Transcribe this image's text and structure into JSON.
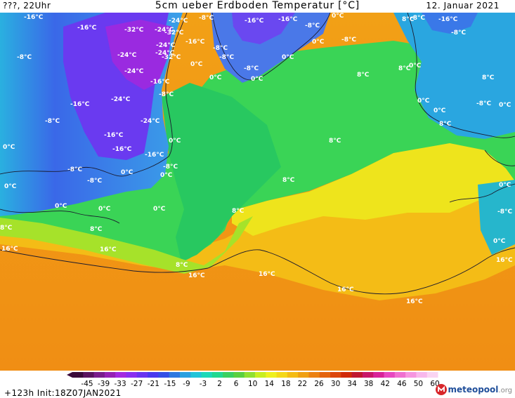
{
  "header": {
    "left": "???, 22Uhr",
    "title": "5cm ueber Erdboden Temperatur [°C]",
    "date": "12. Januar 2021"
  },
  "colorbar": {
    "ticks": [
      "-45",
      "-39",
      "-33",
      "-27",
      "-21",
      "-15",
      "-9",
      "-3",
      "2",
      "6",
      "10",
      "14",
      "18",
      "22",
      "26",
      "30",
      "34",
      "38",
      "42",
      "46",
      "50",
      "60"
    ],
    "colors": [
      "#3a0a3a",
      "#5a1460",
      "#7a1e8c",
      "#9622b4",
      "#a42ae0",
      "#8a2ff0",
      "#6a34f0",
      "#4a3aee",
      "#3450e6",
      "#2e78e0",
      "#2aa0e0",
      "#22c4d8",
      "#1ed8b8",
      "#22d890",
      "#3ad060",
      "#5ad040",
      "#90e030",
      "#c8ee20",
      "#eef01e",
      "#f4d818",
      "#f4bc14",
      "#f0a012",
      "#ec8212",
      "#e4640e",
      "#dc460c",
      "#d02a0a",
      "#c01830",
      "#c81868",
      "#d82498",
      "#e848c0",
      "#f070d0",
      "#f696e0",
      "#f8b8ec",
      "#fad4f2"
    ]
  },
  "map_labels": [
    "-16°C",
    "-16°C",
    "-32°C",
    "-24°C",
    "-24°C",
    "-32°C",
    "-24°C",
    "-8°C",
    "-16°C",
    "-16°C",
    "-8°C",
    "0°C",
    "-16°C",
    "-8°C",
    "-8°C",
    "0°C",
    "-8°C",
    "-8°C",
    "-24°C",
    "-24°C",
    "-32°C",
    "-8°C",
    "8°C",
    "-16°C",
    "-8°C",
    "-24°C",
    "0°C",
    "-8°C",
    "0°C",
    "8°C",
    "8°C",
    "0°C",
    "-16°C",
    "-24°C",
    "-16°C",
    "-8°C",
    "0°C",
    "0°C",
    "0°C",
    "-8°C",
    "-8°C",
    "-24°C",
    "8°C",
    "8°C",
    "0°C",
    "-16°C",
    "-16°C",
    "-16°C",
    "0°C",
    "8°C",
    "0°C",
    "-8°C",
    "0°C",
    "-8°C",
    "0°C",
    "0°C",
    "8°C",
    "0°C",
    "-8°C",
    "0°C",
    "8°C",
    "0°C",
    "0°C",
    "0°C",
    "-8°C",
    "8°C",
    "8°C",
    "16°C",
    "16°C",
    "0°C",
    "8°C",
    "16°C",
    "16°C",
    "16°C",
    "16°C",
    "16°C"
  ],
  "footer": {
    "run_info": "+123h  Init:18Z07JAN2021",
    "logo": "meteopool",
    "logo_suffix": ".org"
  }
}
